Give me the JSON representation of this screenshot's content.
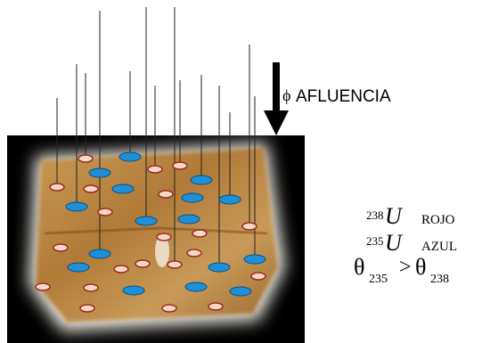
{
  "flux_symbol": "ϕ",
  "flux_label": "AFLUENCIA",
  "legend": [
    {
      "mass": "238",
      "symbol": "U",
      "color_name": "ROJO"
    },
    {
      "mass": "235",
      "symbol": "U",
      "color_name": "AZUL"
    }
  ],
  "inequality": {
    "left_symbol": "θ",
    "left_subscript": "235",
    "operator": ">",
    "right_symbol": "θ",
    "right_subscript": "238"
  }
}
